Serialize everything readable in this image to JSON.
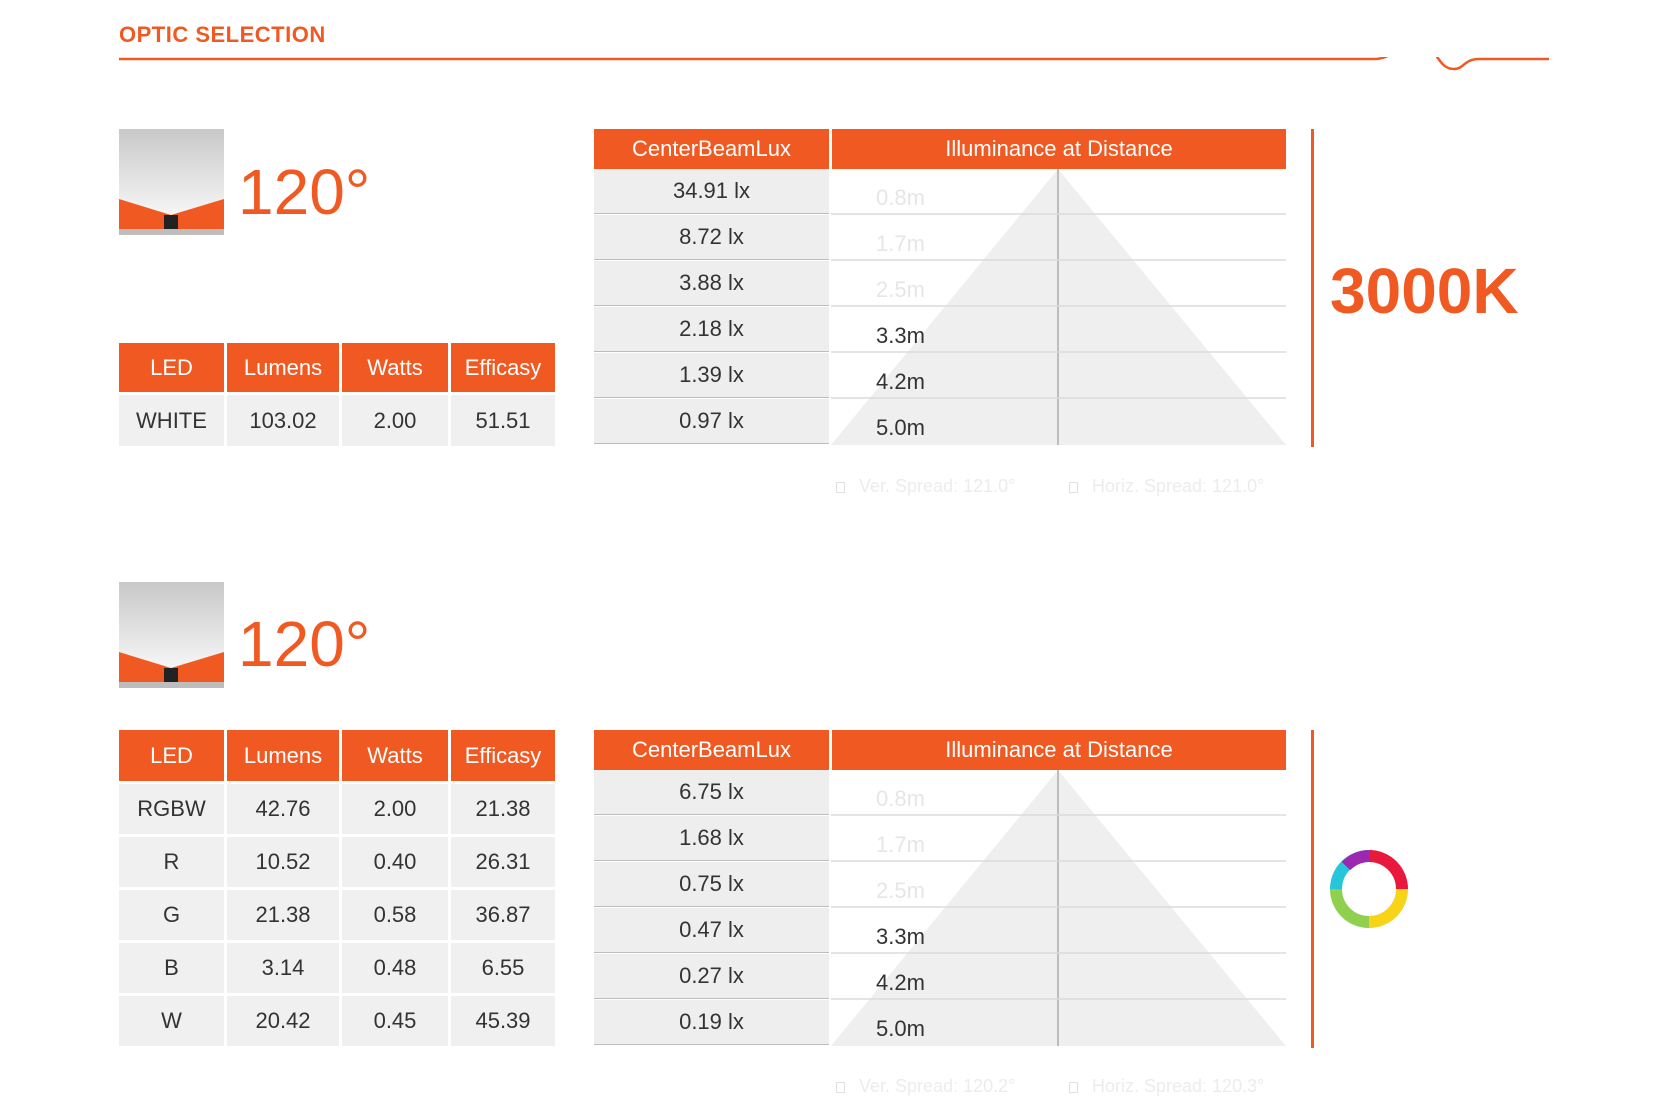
{
  "header": {
    "title": "OPTIC SELECTION"
  },
  "colors": {
    "accent": "#f05a22",
    "cell_bg": "#f0f0f0",
    "text": "#333333"
  },
  "section1": {
    "icon": "optic-beam-icon",
    "angle": "120°",
    "spec": {
      "headers": [
        "LED",
        "Lumens",
        "Watts",
        "Efficasy"
      ],
      "rows": [
        [
          "WHITE",
          "103.02",
          "2.00",
          "51.51"
        ]
      ]
    },
    "lux": {
      "col1": "CenterBeamLux",
      "col2": "Illuminance at Distance",
      "values": [
        "34.91 lx",
        "8.72 lx",
        "3.88 lx",
        "2.18 lx",
        "1.39 lx",
        "0.97 lx"
      ],
      "distances": [
        "0.8m",
        "1.7m",
        "2.5m",
        "3.3m",
        "4.2m",
        "5.0m"
      ]
    },
    "spread": {
      "vertical": "Ver. Spread: 121.0°",
      "horizontal": "Horiz. Spread: 121.0°"
    },
    "cct": "3000K"
  },
  "section2": {
    "icon": "optic-beam-icon",
    "angle": "120°",
    "spec": {
      "headers": [
        "LED",
        "Lumens",
        "Watts",
        "Efficasy"
      ],
      "rows": [
        [
          "RGBW",
          "42.76",
          "2.00",
          "21.38"
        ],
        [
          "R",
          "10.52",
          "0.40",
          "26.31"
        ],
        [
          "G",
          "21.38",
          "0.58",
          "36.87"
        ],
        [
          "B",
          "3.14",
          "0.48",
          "6.55"
        ],
        [
          "W",
          "20.42",
          "0.45",
          "45.39"
        ]
      ]
    },
    "lux": {
      "col1": "CenterBeamLux",
      "col2": "Illuminance at Distance",
      "values": [
        "6.75 lx",
        "1.68 lx",
        "0.75 lx",
        "0.47 lx",
        "0.27 lx",
        "0.19 lx"
      ],
      "distances": [
        "0.8m",
        "1.7m",
        "2.5m",
        "3.3m",
        "4.2m",
        "5.0m"
      ]
    },
    "spread": {
      "vertical": "Ver. Spread: 120.2°",
      "horizontal": "Horiz. Spread: 120.3°"
    },
    "color_icon": "rgb-color-wheel-icon"
  }
}
